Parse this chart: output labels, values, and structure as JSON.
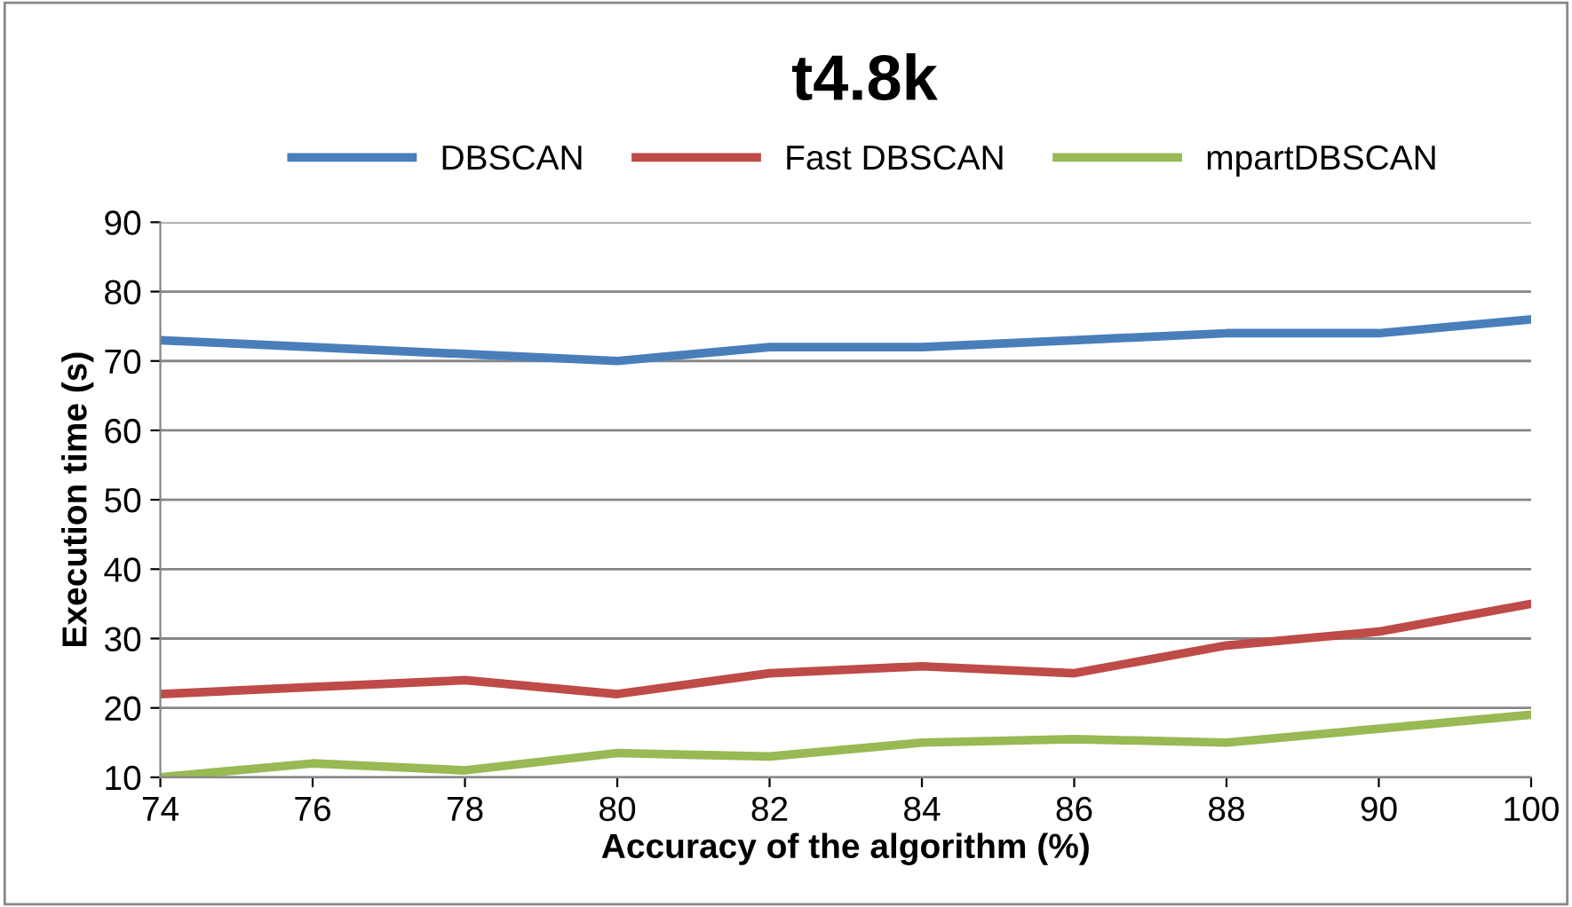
{
  "chart_data": {
    "type": "line",
    "title": "t4.8k",
    "xlabel": "Accuracy of the algorithm (%)",
    "ylabel": "Execution time (s)",
    "categories": [
      "74",
      "76",
      "78",
      "80",
      "82",
      "84",
      "86",
      "88",
      "90",
      "100"
    ],
    "series": [
      {
        "name": "DBSCAN",
        "color": "#4a7ebb",
        "values": [
          73,
          72,
          71,
          70,
          72,
          72,
          73,
          74,
          74,
          76
        ]
      },
      {
        "name": "Fast DBSCAN",
        "color": "#be4b48",
        "values": [
          22,
          23,
          24,
          22,
          25,
          26,
          25,
          29,
          31,
          35
        ]
      },
      {
        "name": "mpartDBSCAN",
        "color": "#98b954",
        "values": [
          10,
          12,
          11,
          13.5,
          13,
          15,
          15.5,
          15,
          17,
          19
        ]
      }
    ],
    "ylim": [
      10,
      90
    ],
    "yticks": [
      10,
      20,
      30,
      40,
      50,
      60,
      70,
      80,
      90
    ],
    "grid": "y",
    "legend": "top",
    "marker": "none",
    "line_style": "solid"
  }
}
